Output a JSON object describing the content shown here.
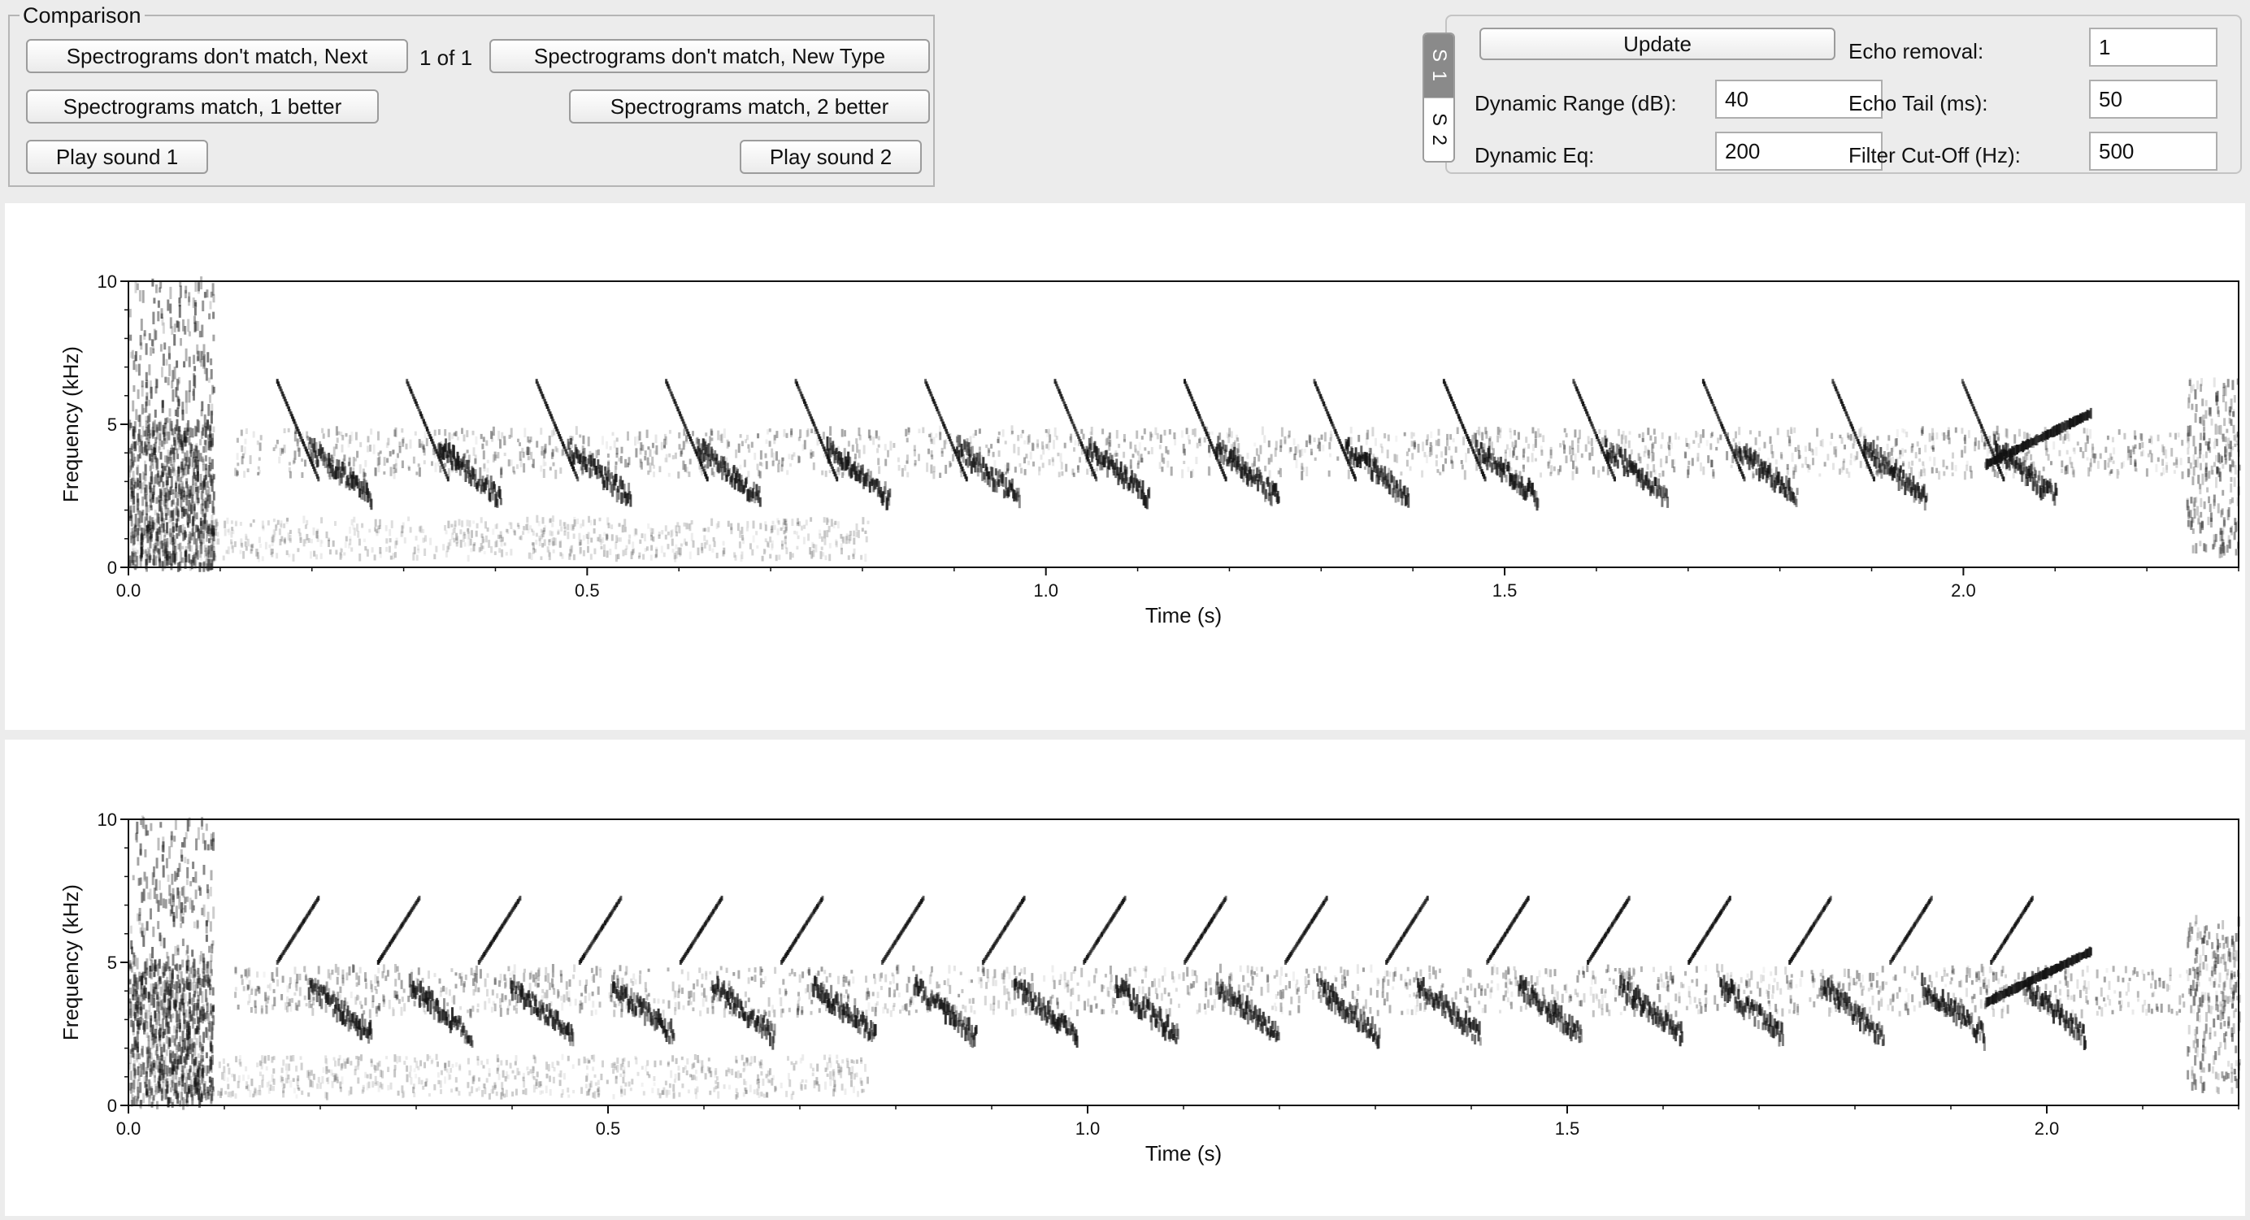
{
  "comparison": {
    "legend": "Comparison",
    "next_button": "Spectrograms don't match, Next",
    "counter": "1 of 1",
    "new_type_button": "Spectrograms don't match, New Type",
    "match1_button": "Spectrograms match, 1 better",
    "match2_button": "Spectrograms match, 2 better",
    "play1_button": "Play sound 1",
    "play2_button": "Play sound 2"
  },
  "settings": {
    "update_button": "Update",
    "tabs": [
      "S 1",
      "S 2"
    ],
    "active_tab": "S 1",
    "dynamic_range_label": "Dynamic Range (dB):",
    "dynamic_range_value": "40",
    "dynamic_eq_label": "Dynamic Eq:",
    "dynamic_eq_value": "200",
    "echo_removal_label": "Echo removal:",
    "echo_removal_value": "1",
    "echo_tail_label": "Echo Tail (ms):",
    "echo_tail_value": "50",
    "filter_cutoff_label": "Filter Cut-Off (Hz):",
    "filter_cutoff_value": "500"
  },
  "chart_data": [
    {
      "type": "heatmap",
      "subtype": "spectrogram",
      "colormap": "grayscale",
      "xlabel": "Time (s)",
      "ylabel": "Frequency (kHz)",
      "xlim": [
        0.0,
        2.3
      ],
      "ylim": [
        0,
        10
      ],
      "xticks": [
        "0.0",
        "0.5",
        "1.0",
        "1.5",
        "2.0"
      ],
      "yticks": [
        "0",
        "5",
        "10"
      ]
    },
    {
      "type": "heatmap",
      "subtype": "spectrogram",
      "colormap": "grayscale",
      "xlabel": "Time (s)",
      "ylabel": "Frequency (kHz)",
      "xlim": [
        0.0,
        2.2
      ],
      "ylim": [
        0,
        10
      ],
      "xticks": [
        "0.0",
        "0.5",
        "1.0",
        "1.5",
        "2.0"
      ],
      "yticks": [
        "0",
        "5",
        "10"
      ]
    }
  ]
}
